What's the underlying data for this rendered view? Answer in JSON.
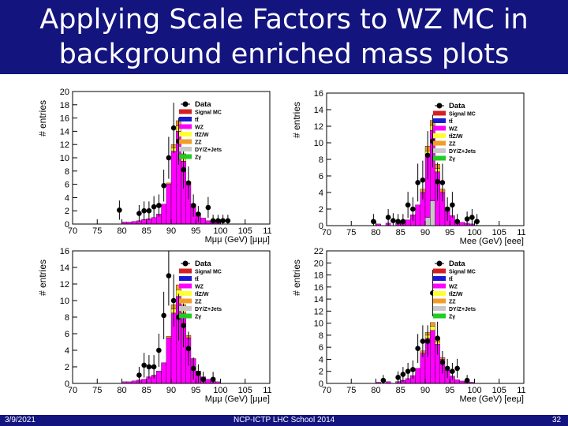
{
  "title": {
    "line1": "Applying Scale Factors to WZ MC in",
    "line2": "background enriched mass plots"
  },
  "footer": {
    "date": "3/9/2021",
    "center": "NCP-ICTP LHC School 2014",
    "page": "32"
  },
  "legend_labels": [
    "Data",
    "Signal MC",
    "tt̄",
    "WZ",
    "tt̄Z/W",
    "ZZ",
    "DY/Z+Jets",
    "Zγ"
  ],
  "colors": {
    "Data": "#000000",
    "Signal MC": "#d42020",
    "tt̄": "#1a1ad0",
    "WZ": "#ff00ff",
    "tt̄Z/W": "#ffff33",
    "ZZ": "#f39c26",
    "DY/Z+Jets": "#c8c8c8",
    "Zγ": "#22cc22"
  },
  "chart_data": [
    {
      "type": "bar",
      "title": "M_μμμ",
      "ylabel": "# entries",
      "xlabel": "Mμμ (GeV) [μμμ]",
      "xlim": [
        70,
        110
      ],
      "ylim": [
        0,
        20
      ],
      "xticks": [
        70,
        75,
        80,
        85,
        90,
        95,
        100,
        105,
        110
      ],
      "yticks": [
        0,
        2,
        4,
        6,
        8,
        10,
        12,
        14,
        16,
        18,
        20
      ],
      "bin_width": 1,
      "stack": [
        {
          "name": "WZ",
          "bins": [
            [
              80,
              0.3
            ],
            [
              81,
              0.3
            ],
            [
              82,
              0.4
            ],
            [
              83,
              0.5
            ],
            [
              84,
              0.7
            ],
            [
              85,
              0.8
            ],
            [
              86,
              1.0
            ],
            [
              87,
              1.5
            ],
            [
              88,
              3.0
            ],
            [
              89,
              6.0
            ],
            [
              90,
              11.0
            ],
            [
              91,
              14.0
            ],
            [
              92,
              9.5
            ],
            [
              93,
              6.0
            ],
            [
              94,
              3.0
            ],
            [
              95,
              1.6
            ],
            [
              96,
              0.9
            ],
            [
              97,
              0.5
            ],
            [
              98,
              0.4
            ],
            [
              99,
              0.3
            ]
          ]
        },
        {
          "name": "tt̄Z/W",
          "bins": [
            [
              90,
              0.5
            ],
            [
              91,
              0.8
            ],
            [
              92,
              0.5
            ]
          ]
        },
        {
          "name": "ZZ",
          "bins": [
            [
              89,
              0.2
            ],
            [
              90,
              0.5
            ],
            [
              91,
              0.8
            ],
            [
              92,
              0.6
            ],
            [
              93,
              0.4
            ]
          ]
        }
      ],
      "data_points": [
        [
          79.5,
          2.1
        ],
        [
          83.5,
          1.6
        ],
        [
          84.5,
          2.0
        ],
        [
          85.5,
          2.0
        ],
        [
          86.5,
          2.6
        ],
        [
          87.5,
          2.8
        ],
        [
          88.5,
          5.8
        ],
        [
          89.5,
          10.0
        ],
        [
          90.5,
          14.5
        ],
        [
          91.5,
          12.5
        ],
        [
          92.5,
          8.2
        ],
        [
          93.5,
          6.2
        ],
        [
          94.5,
          2.8
        ],
        [
          95.5,
          1.5
        ],
        [
          97.5,
          2.5
        ],
        [
          98.5,
          0.5
        ],
        [
          99.5,
          0.5
        ],
        [
          100.5,
          0.5
        ],
        [
          101.5,
          0.5
        ]
      ]
    },
    {
      "type": "bar",
      "title": "M_ee",
      "ylabel": "# entries",
      "xlabel": "Mee (GeV) [eee]",
      "xlim": [
        70,
        110
      ],
      "ylim": [
        0,
        16
      ],
      "xticks": [
        70,
        75,
        80,
        85,
        90,
        95,
        100,
        105,
        110
      ],
      "yticks": [
        0,
        2,
        4,
        6,
        8,
        10,
        12,
        14,
        16
      ],
      "bin_width": 1,
      "stack": [
        {
          "name": "DY/Z+Jets",
          "bins": [
            [
              90,
              1.0
            ],
            [
              91,
              3.0
            ]
          ]
        },
        {
          "name": "WZ",
          "bins": [
            [
              80,
              0.2
            ],
            [
              82,
              0.3
            ],
            [
              84,
              0.3
            ],
            [
              85,
              0.4
            ],
            [
              86,
              0.7
            ],
            [
              87,
              1.3
            ],
            [
              88,
              2.5
            ],
            [
              89,
              4.0
            ],
            [
              90,
              7.5
            ],
            [
              91,
              8.5
            ],
            [
              92,
              6.5
            ],
            [
              93,
              4.0
            ],
            [
              94,
              2.2
            ],
            [
              95,
              1.2
            ],
            [
              96,
              0.6
            ],
            [
              97,
              0.4
            ],
            [
              98,
              0.3
            ],
            [
              99,
              0.2
            ]
          ]
        },
        {
          "name": "tt̄Z/W",
          "bins": [
            [
              90,
              0.5
            ],
            [
              91,
              0.6
            ],
            [
              92,
              0.4
            ]
          ]
        },
        {
          "name": "ZZ",
          "bins": [
            [
              89,
              0.4
            ],
            [
              90,
              0.6
            ],
            [
              91,
              0.6
            ],
            [
              92,
              0.5
            ],
            [
              93,
              0.4
            ]
          ]
        }
      ],
      "data_points": [
        [
          79.5,
          0.5
        ],
        [
          82.5,
          1.0
        ],
        [
          83.5,
          0.6
        ],
        [
          84.5,
          0.5
        ],
        [
          85.5,
          0.5
        ],
        [
          86.5,
          2.5
        ],
        [
          87.5,
          2.0
        ],
        [
          88.5,
          5.2
        ],
        [
          89.5,
          5.5
        ],
        [
          90.5,
          8.5
        ],
        [
          91.5,
          10.2
        ],
        [
          92.5,
          5.3
        ],
        [
          93.5,
          5.2
        ],
        [
          94.5,
          2.0
        ],
        [
          95.5,
          2.5
        ],
        [
          96.5,
          0.5
        ],
        [
          98.5,
          0.8
        ],
        [
          99.5,
          1.0
        ],
        [
          100.5,
          0.5
        ]
      ]
    },
    {
      "type": "bar",
      "title": "M_μμ",
      "ylabel": "# entries",
      "xlabel": "Mμμ (GeV) [μμe]",
      "xlim": [
        70,
        110
      ],
      "ylim": [
        0,
        16
      ],
      "xticks": [
        70,
        75,
        80,
        85,
        90,
        95,
        100,
        105,
        110
      ],
      "yticks": [
        0,
        2,
        4,
        6,
        8,
        10,
        12,
        14,
        16
      ],
      "bin_width": 1,
      "stack": [
        {
          "name": "WZ",
          "bins": [
            [
              80,
              0.2
            ],
            [
              81,
              0.2
            ],
            [
              82,
              0.3
            ],
            [
              83,
              0.4
            ],
            [
              84,
              0.5
            ],
            [
              85,
              0.8
            ],
            [
              86,
              1.0
            ],
            [
              87,
              1.5
            ],
            [
              88,
              2.5
            ],
            [
              89,
              5.5
            ],
            [
              90,
              8.5
            ],
            [
              91,
              10.5
            ],
            [
              92,
              8.5
            ],
            [
              93,
              5.5
            ],
            [
              94,
              3.0
            ],
            [
              95,
              1.5
            ],
            [
              96,
              0.8
            ],
            [
              97,
              0.5
            ],
            [
              98,
              0.3
            ],
            [
              99,
              0.2
            ]
          ]
        },
        {
          "name": "tt̄Z/W",
          "bins": [
            [
              90,
              0.5
            ],
            [
              91,
              0.8
            ],
            [
              92,
              0.5
            ]
          ]
        },
        {
          "name": "ZZ",
          "bins": [
            [
              89,
              0.2
            ],
            [
              90,
              0.5
            ],
            [
              91,
              0.6
            ],
            [
              92,
              0.5
            ],
            [
              93,
              0.3
            ]
          ]
        }
      ],
      "data_points": [
        [
          83.5,
          1.0
        ],
        [
          84.5,
          2.2
        ],
        [
          85.5,
          2.0
        ],
        [
          86.5,
          2.0
        ],
        [
          87.5,
          4.0
        ],
        [
          88.5,
          8.2
        ],
        [
          89.5,
          13.0
        ],
        [
          90.5,
          10.0
        ],
        [
          91.5,
          8.0
        ],
        [
          92.5,
          7.0
        ],
        [
          93.5,
          4.2
        ],
        [
          94.5,
          1.8
        ],
        [
          95.5,
          1.2
        ],
        [
          96.5,
          0.5
        ],
        [
          98.5,
          0.5
        ]
      ]
    },
    {
      "type": "bar",
      "title": "M_ee",
      "ylabel": "# entries",
      "xlabel": "Mee (GeV) [eeμ]",
      "xlim": [
        70,
        110
      ],
      "ylim": [
        0,
        22
      ],
      "xticks": [
        70,
        75,
        80,
        85,
        90,
        95,
        100,
        105,
        110
      ],
      "yticks": [
        0,
        2,
        4,
        6,
        8,
        10,
        12,
        14,
        16,
        18,
        20,
        22
      ],
      "bin_width": 1,
      "stack": [
        {
          "name": "WZ",
          "bins": [
            [
              80,
              0.2
            ],
            [
              82,
              0.3
            ],
            [
              84,
              0.3
            ],
            [
              85,
              0.5
            ],
            [
              86,
              0.8
            ],
            [
              87,
              1.3
            ],
            [
              88,
              2.5
            ],
            [
              89,
              5.0
            ],
            [
              90,
              7.5
            ],
            [
              91,
              8.8
            ],
            [
              92,
              6.5
            ],
            [
              93,
              4.0
            ],
            [
              94,
              2.2
            ],
            [
              95,
              1.2
            ],
            [
              96,
              0.6
            ],
            [
              97,
              0.4
            ],
            [
              98,
              0.3
            ],
            [
              99,
              0.2
            ]
          ]
        },
        {
          "name": "tt̄Z/W",
          "bins": [
            [
              90,
              0.5
            ],
            [
              91,
              0.7
            ],
            [
              92,
              0.4
            ]
          ]
        },
        {
          "name": "ZZ",
          "bins": [
            [
              89,
              0.4
            ],
            [
              90,
              0.5
            ],
            [
              91,
              0.6
            ],
            [
              92,
              0.5
            ],
            [
              93,
              0.3
            ]
          ]
        }
      ],
      "data_points": [
        [
          81.5,
          0.5
        ],
        [
          84.5,
          1.0
        ],
        [
          85.5,
          1.5
        ],
        [
          86.5,
          2.0
        ],
        [
          87.5,
          2.3
        ],
        [
          88.5,
          5.8
        ],
        [
          89.5,
          7.0
        ],
        [
          90.5,
          7.0
        ],
        [
          91.5,
          15.0
        ],
        [
          92.5,
          7.5
        ],
        [
          93.5,
          3.5
        ],
        [
          94.5,
          2.5
        ],
        [
          95.5,
          2.0
        ],
        [
          96.5,
          2.5
        ],
        [
          98.5,
          0.5
        ]
      ]
    }
  ]
}
